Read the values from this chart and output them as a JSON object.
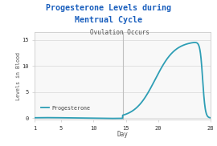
{
  "title_line1": "Progesterone Levels during",
  "title_line2": "Mentrual Cycle",
  "subtitle": "Ovulation Occurs",
  "xlabel": "Day",
  "ylabel": "Levels in Blood",
  "legend_label": "Progesterone",
  "xticks": [
    1,
    5,
    10,
    15,
    20,
    28
  ],
  "yticks": [
    0,
    5,
    10,
    15
  ],
  "xlim": [
    1,
    28
  ],
  "ylim": [
    -0.3,
    16.5
  ],
  "line_color": "#2e9eb5",
  "title_color": "#1a5fbd",
  "background_color": "#ffffff",
  "plot_bg_color": "#f8f8f8",
  "vline_x": 14.5,
  "vline_color": "#c0c0c0",
  "grid_color": "#d8d8d8"
}
